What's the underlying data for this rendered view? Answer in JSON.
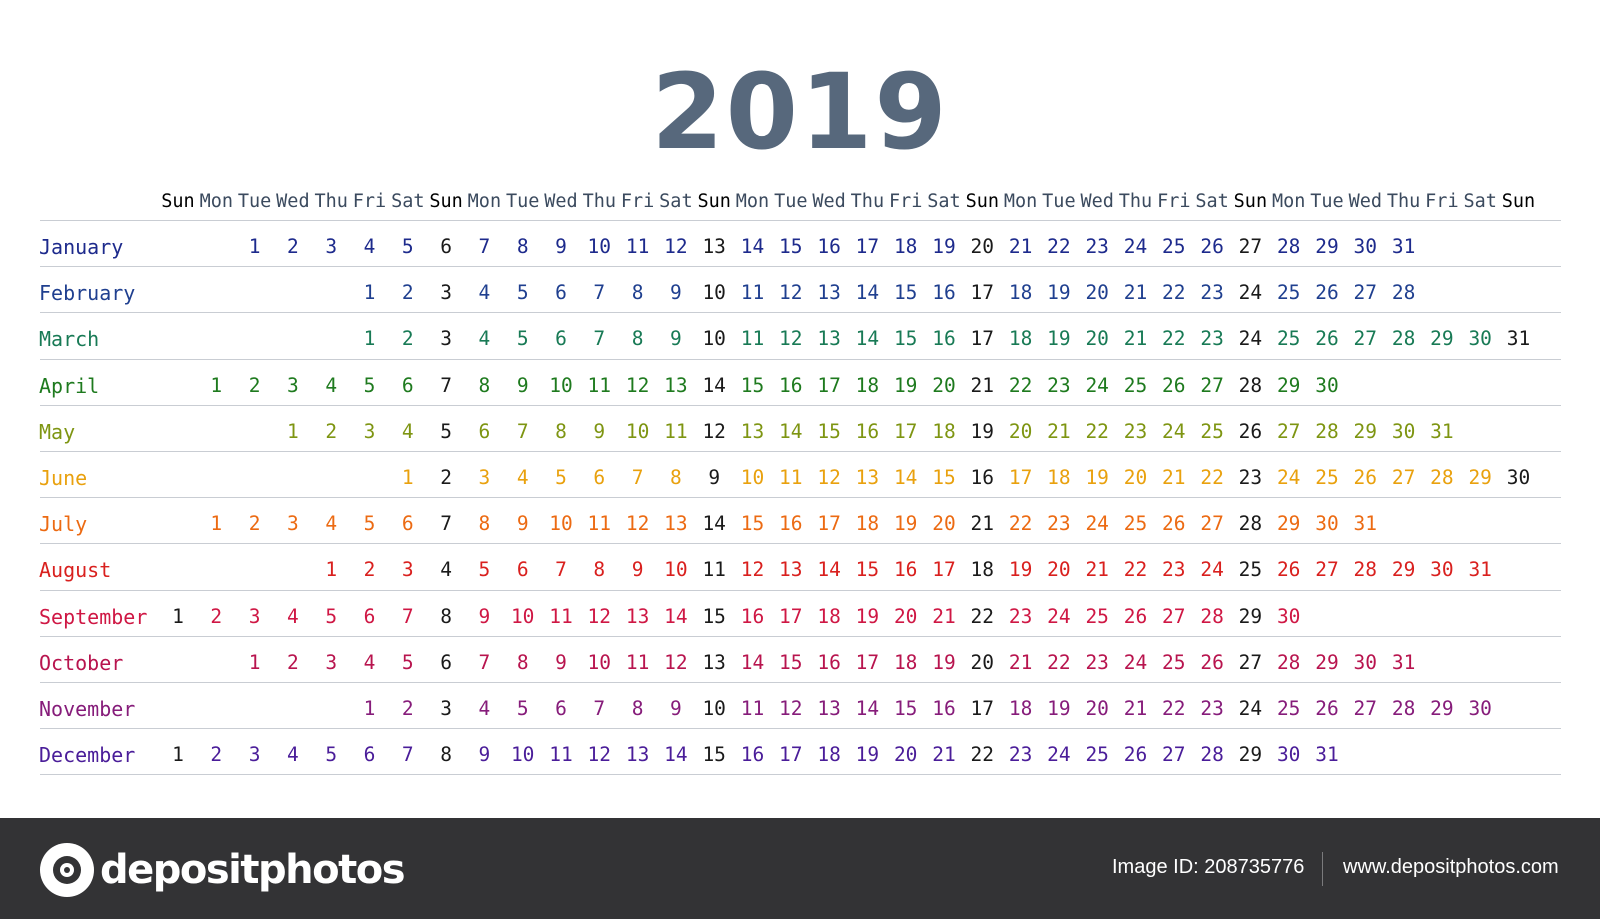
{
  "title": "2019",
  "weekday_header": [
    "Sun",
    "Mon",
    "Tue",
    "Wed",
    "Thu",
    "Fri",
    "Sat",
    "Sun",
    "Mon",
    "Tue",
    "Wed",
    "Thu",
    "Fri",
    "Sat",
    "Sun",
    "Mon",
    "Tue",
    "Wed",
    "Thu",
    "Fri",
    "Sat",
    "Sun",
    "Mon",
    "Tue",
    "Wed",
    "Thu",
    "Fri",
    "Sat",
    "Sun",
    "Mon",
    "Tue",
    "Wed",
    "Thu",
    "Fri",
    "Sat",
    "Sun"
  ],
  "colors": {
    "title": "#57687c",
    "header": "#3b4a5e",
    "sunday_header": "#000000",
    "sunday": "#1a1a1a",
    "rule": "#c9cdd3",
    "footer_bg": "#333335"
  },
  "months": [
    {
      "name": "January",
      "start_weekday": 2,
      "days": 31,
      "color": "#1d2a8c"
    },
    {
      "name": "February",
      "start_weekday": 5,
      "days": 28,
      "color": "#1f3f8f"
    },
    {
      "name": "March",
      "start_weekday": 5,
      "days": 31,
      "color": "#187a55"
    },
    {
      "name": "April",
      "start_weekday": 1,
      "days": 30,
      "color": "#1e7a1e"
    },
    {
      "name": "May",
      "start_weekday": 3,
      "days": 31,
      "color": "#7e9512"
    },
    {
      "name": "June",
      "start_weekday": 6,
      "days": 30,
      "color": "#e9a10e"
    },
    {
      "name": "July",
      "start_weekday": 1,
      "days": 31,
      "color": "#ec6a12"
    },
    {
      "name": "August",
      "start_weekday": 4,
      "days": 31,
      "color": "#d9201e"
    },
    {
      "name": "September",
      "start_weekday": 0,
      "days": 30,
      "color": "#cf1744"
    },
    {
      "name": "October",
      "start_weekday": 2,
      "days": 31,
      "color": "#b8144e"
    },
    {
      "name": "November",
      "start_weekday": 5,
      "days": 30,
      "color": "#861c7a"
    },
    {
      "name": "December",
      "start_weekday": 0,
      "days": 31,
      "color": "#4a1d99"
    }
  ],
  "footer": {
    "logo_text": "depositphotos",
    "logo_icon": "camera-icon",
    "image_id": "Image ID: 208735776",
    "url": "www.depositphotos.com"
  }
}
